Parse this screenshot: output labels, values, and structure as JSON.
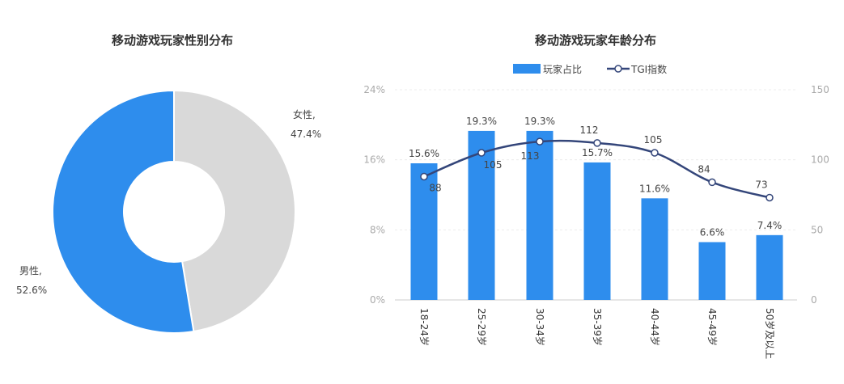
{
  "chart_data": [
    {
      "type": "pie",
      "title": "移动游戏玩家性别分布",
      "slices": [
        {
          "label": "女性,",
          "value": 47.4,
          "value_label": "47.4%",
          "color": "#d9d9d9"
        },
        {
          "label": "男性,",
          "value": 52.6,
          "value_label": "52.6%",
          "color": "#2e8ded"
        }
      ]
    },
    {
      "type": "bar",
      "title": "移动游戏玩家年龄分布",
      "categories": [
        "18-24岁",
        "25-29岁",
        "30-34岁",
        "35-39岁",
        "40-44岁",
        "45-49岁",
        "50岁及以上"
      ],
      "series": [
        {
          "name": "玩家占比",
          "type": "bar",
          "axis": "left",
          "color": "#2e8ded",
          "values": [
            15.6,
            19.3,
            19.3,
            15.7,
            11.6,
            6.6,
            7.4
          ],
          "labels": [
            "15.6%",
            "19.3%",
            "19.3%",
            "15.7%",
            "11.6%",
            "6.6%",
            "7.4%"
          ]
        },
        {
          "name": "TGI指数",
          "type": "line",
          "axis": "right",
          "color": "#34467a",
          "values": [
            88,
            105,
            113,
            112,
            105,
            84,
            73
          ],
          "labels": [
            "88",
            "105",
            "113",
            "112",
            "105",
            "84",
            "73"
          ]
        }
      ],
      "y_left": {
        "min": 0,
        "max": 24,
        "ticks": [
          "0%",
          "8%",
          "16%",
          "24%"
        ]
      },
      "y_right": {
        "min": 0,
        "max": 150,
        "ticks": [
          "0",
          "50",
          "100",
          "150"
        ]
      },
      "legend": "top",
      "grid": true
    }
  ]
}
